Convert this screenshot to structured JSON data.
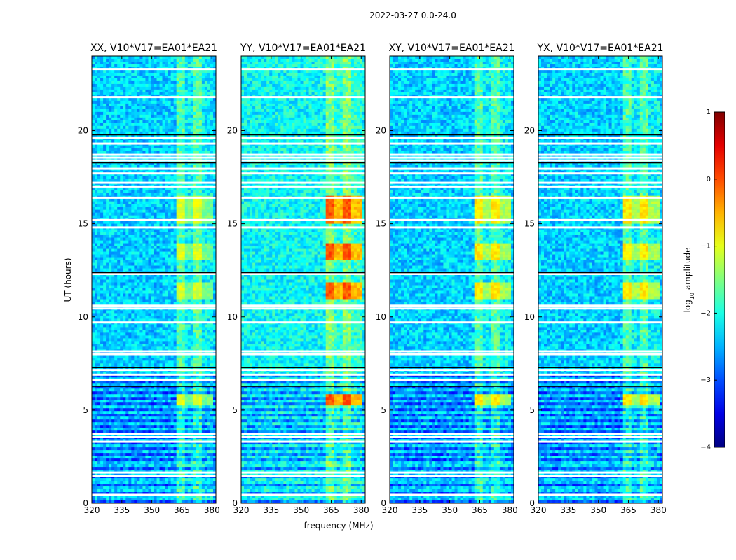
{
  "figure": {
    "title": "2022-03-27 0.0-24.0"
  },
  "chart_data": {
    "type": "heatmap",
    "title": "2022-03-27 0.0-24.0",
    "xlabel": "frequency (MHz)",
    "ylabel": "UT (hours)",
    "xlim": [
      320,
      382
    ],
    "ylim": [
      0,
      24
    ],
    "x_ticks": [
      "320",
      "335",
      "350",
      "365",
      "380"
    ],
    "x_tick_values": [
      320,
      335,
      350,
      365,
      380
    ],
    "y_ticks": [
      "0",
      "5",
      "10",
      "15",
      "20"
    ],
    "y_tick_values": [
      0,
      5,
      10,
      15,
      20
    ],
    "panels": [
      {
        "title": "XX, V10*V17=EA01*EA21",
        "level": 0.35,
        "band_level": 0.55
      },
      {
        "title": "YY, V10*V17=EA01*EA21",
        "level": 0.4,
        "band_level": 0.75
      },
      {
        "title": "XY, V10*V17=EA01*EA21",
        "level": 0.35,
        "band_level": 0.6
      },
      {
        "title": "YX, V10*V17=EA01*EA21",
        "level": 0.35,
        "band_level": 0.6
      }
    ],
    "rfi_band_MHz": [
      362,
      380
    ],
    "strong_rfi_hours": [
      [
        13.0,
        14.0
      ],
      [
        11.0,
        11.8
      ],
      [
        5.2,
        5.9
      ],
      [
        15.0,
        16.5
      ]
    ],
    "flagged_hours": [
      0.45,
      1.45,
      1.65,
      3.3,
      3.55,
      3.7,
      6.6,
      6.9,
      7.15,
      8.0,
      8.15,
      9.7,
      10.45,
      10.6,
      12.3,
      14.8,
      15.2,
      16.4,
      17.0,
      17.2,
      17.7,
      17.95,
      18.4,
      18.55,
      18.7,
      19.3,
      19.6,
      21.8,
      23.3
    ],
    "colorbar": {
      "label": "log10 amplitude",
      "label_base": "log",
      "label_sub": "10",
      "label_rest": " amplitude",
      "range": [
        -4,
        1
      ],
      "ticks": [
        "−4",
        "−3",
        "−2",
        "−1",
        "0",
        "1"
      ],
      "tick_values": [
        -4,
        -3,
        -2,
        -1,
        0,
        1
      ],
      "colormap": "jet"
    }
  }
}
